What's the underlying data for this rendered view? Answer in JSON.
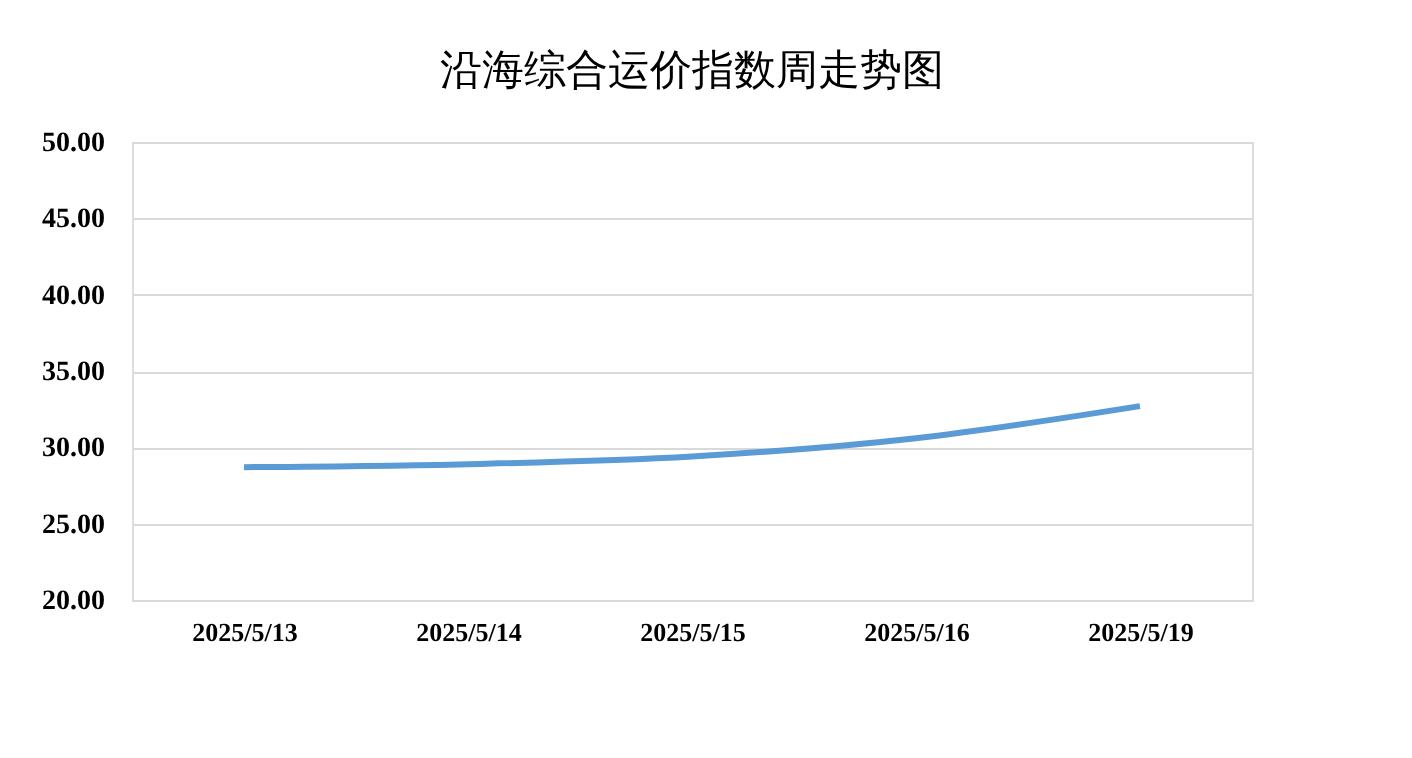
{
  "chart_data": {
    "type": "line",
    "title": "沿海综合运价指数周走势图",
    "categories": [
      "2025/5/13",
      "2025/5/14",
      "2025/5/15",
      "2025/5/16",
      "2025/5/19"
    ],
    "series": [
      {
        "color": "#5b9bd5",
        "values": [
          28.7,
          28.9,
          29.4,
          30.6,
          32.7
        ]
      }
    ],
    "ylim": [
      20,
      50
    ],
    "yticks": [
      {
        "value": 20,
        "label": "20.00"
      },
      {
        "value": 25,
        "label": "25.00"
      },
      {
        "value": 30,
        "label": "30.00"
      },
      {
        "value": 35,
        "label": "35.00"
      },
      {
        "value": 40,
        "label": "40.00"
      },
      {
        "value": 45,
        "label": "45.00"
      },
      {
        "value": 50,
        "label": "50.00"
      }
    ],
    "grid": "y",
    "marker": "none",
    "line_style": "solid"
  }
}
